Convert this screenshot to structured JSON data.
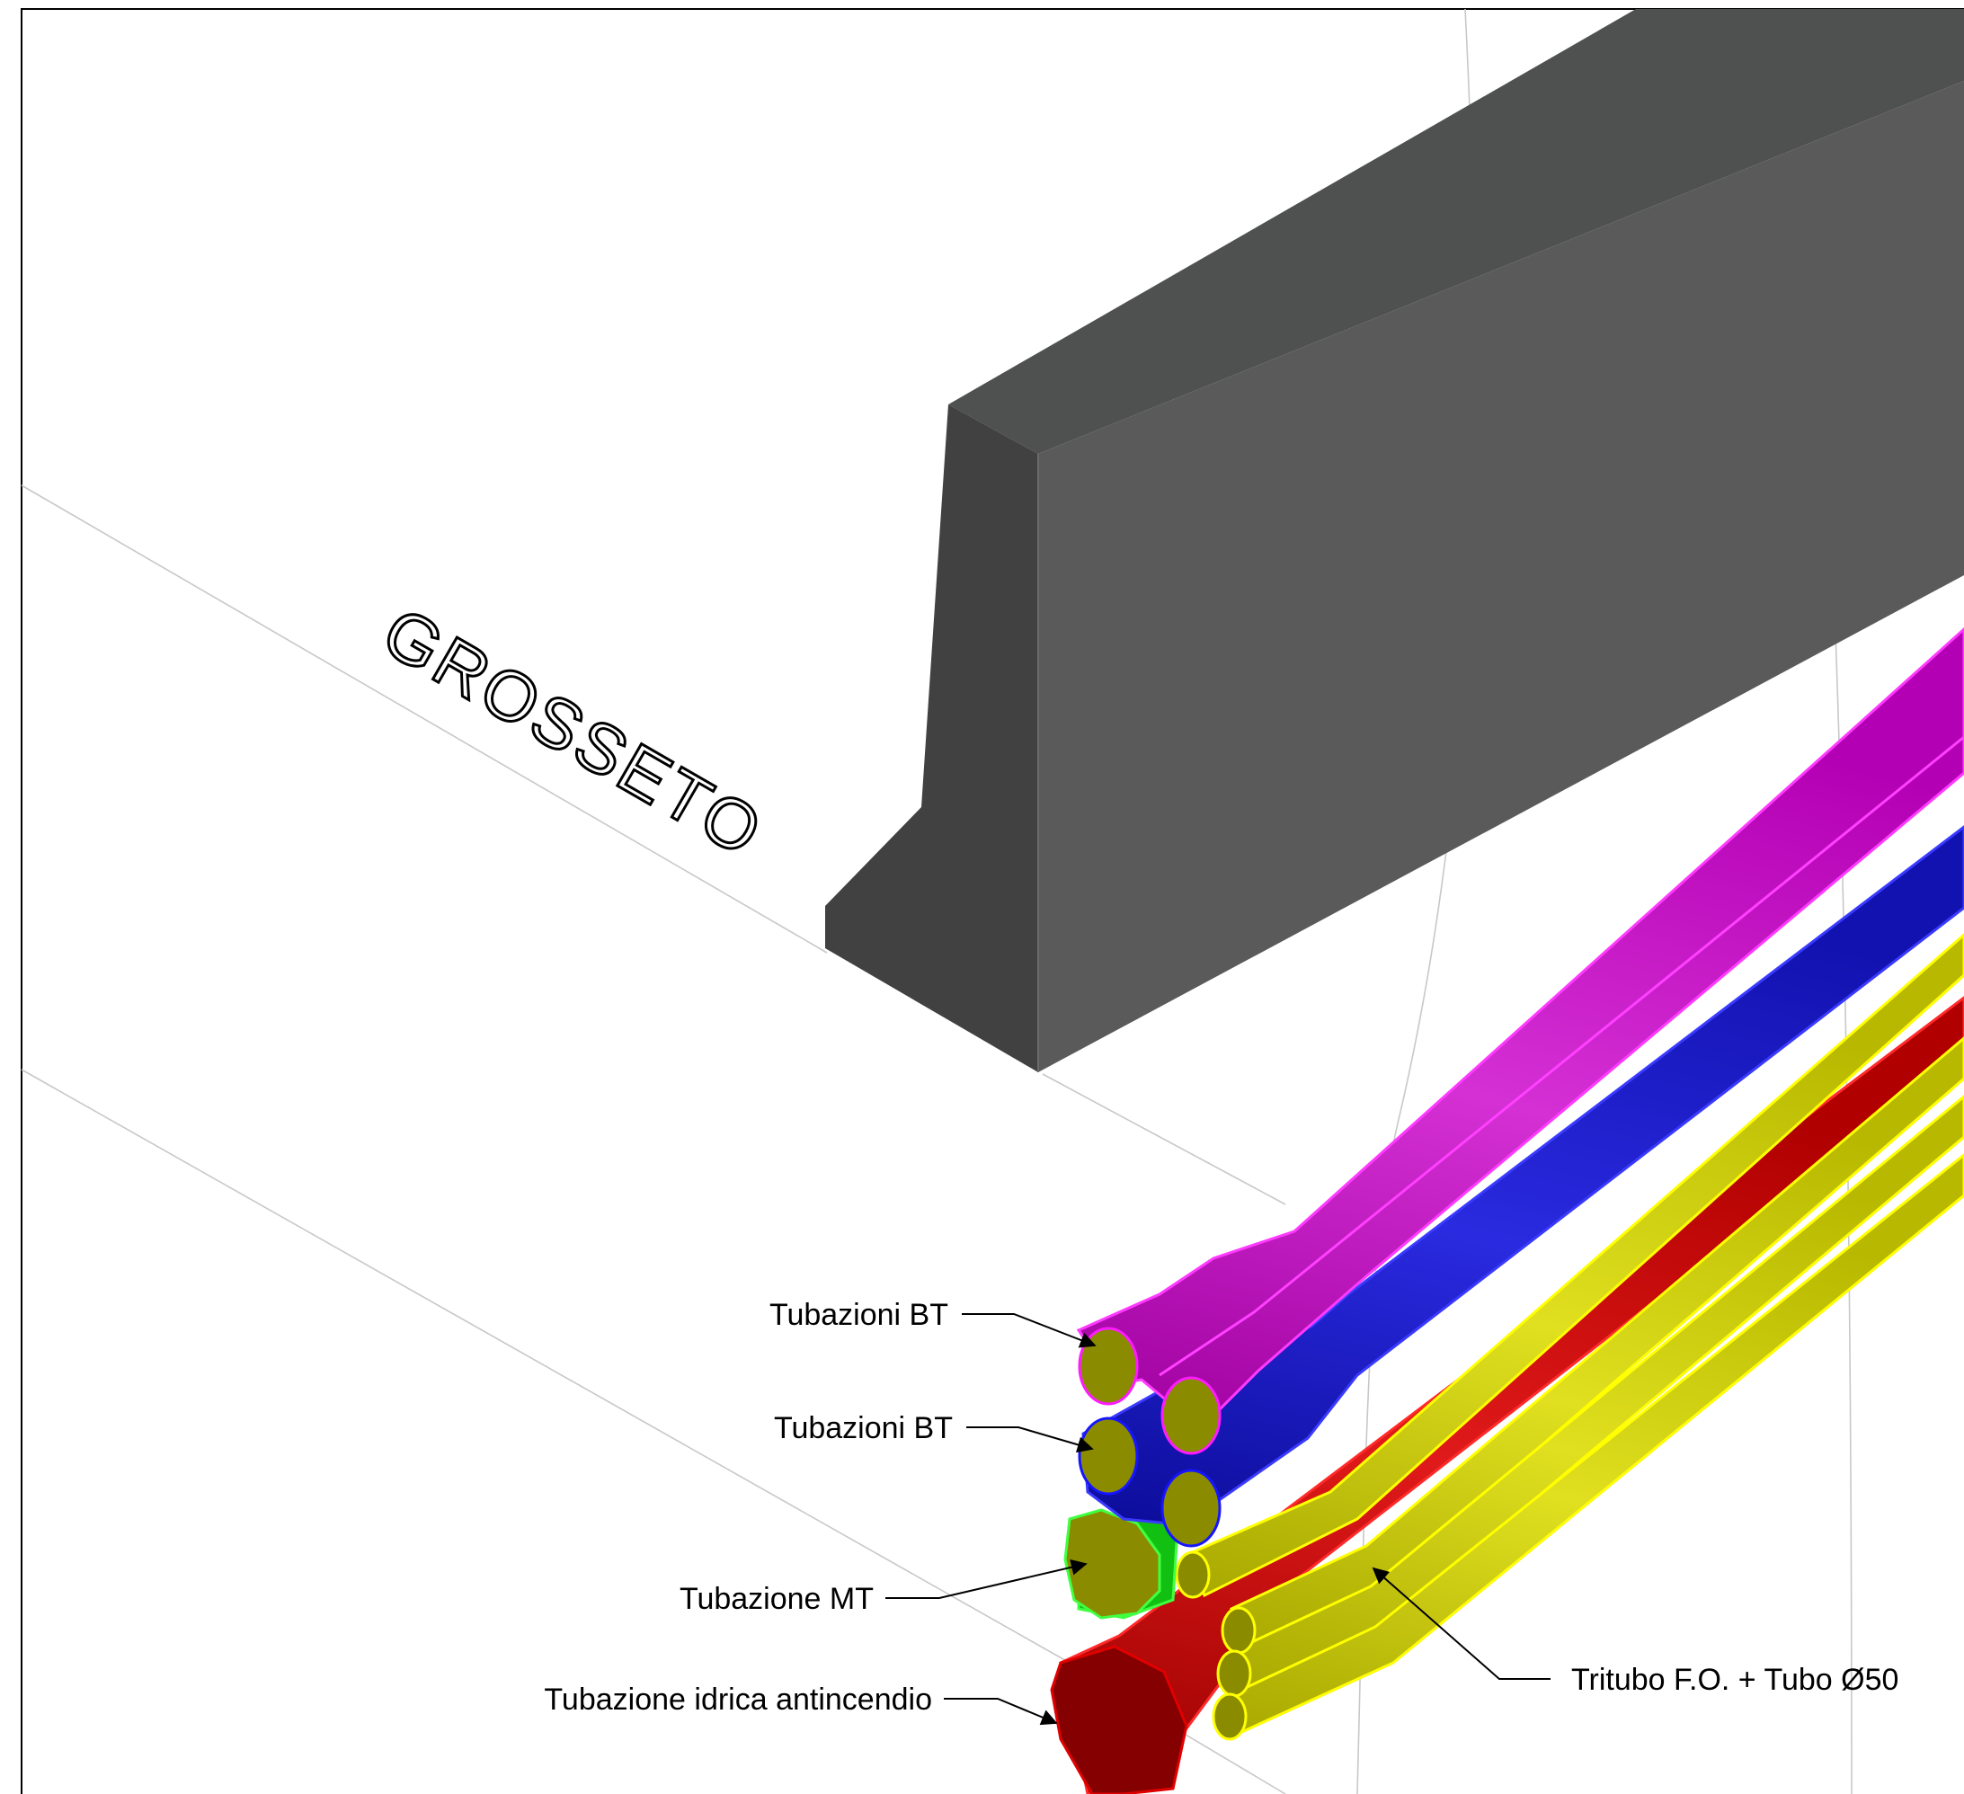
{
  "place_label": "GROSSETO",
  "labels": {
    "bt_upper": "Tubazioni BT",
    "bt_lower": "Tubazioni BT",
    "mt": "Tubazione MT",
    "idrica": "Tubazione idrica antincendio",
    "tritubo": "Tritubo F.O. + Tubo Ø50"
  },
  "colors": {
    "barrier_top": "#4f5150",
    "barrier_front": "#5a5a5a",
    "barrier_side": "#414141",
    "bt_upper_pipe": "#c400c4",
    "bt_lower_pipe": "#1010b8",
    "mt_pipe": "#10c010",
    "idrica_pipe": "#c00000",
    "tritubo_pipe": "#c8c800",
    "pipe_end": "#8b8b00"
  }
}
